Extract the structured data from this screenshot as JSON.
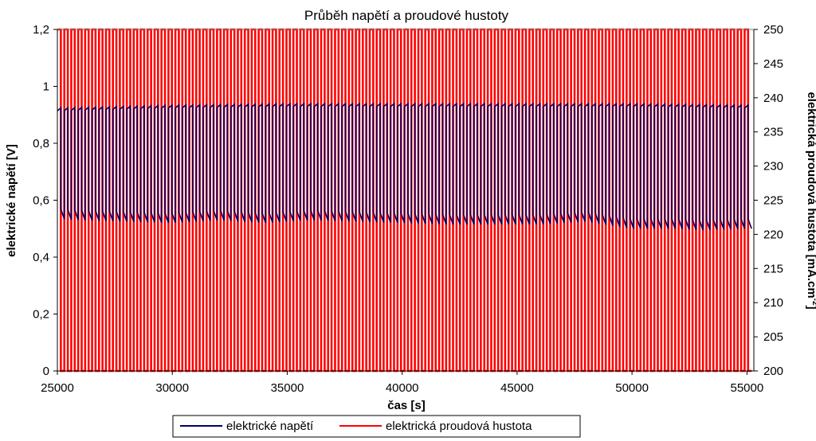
{
  "chart_data": {
    "type": "line",
    "title": "Průběh napětí a proudové hustoty",
    "xlabel": "čas [s]",
    "ylabel_left": "elektrické napětí [V]",
    "ylabel_right_main": "elektrická proudová hustota [mA.cm",
    "ylabel_right_sup": "-2",
    "ylabel_right_end": "]",
    "xlim": [
      25000,
      55300
    ],
    "ylim_left": [
      0,
      1.2
    ],
    "ylim_right": [
      200,
      250
    ],
    "x_ticks": [
      "25000",
      "30000",
      "35000",
      "40000",
      "45000",
      "50000",
      "55000"
    ],
    "x_tick_values": [
      25000,
      30000,
      35000,
      40000,
      45000,
      50000,
      55000
    ],
    "y_left_ticks": [
      "0",
      "0,2",
      "0,4",
      "0,6",
      "0,8",
      "1",
      "1,2"
    ],
    "y_left_tick_values": [
      0,
      0.2,
      0.4,
      0.6,
      0.8,
      1.0,
      1.2
    ],
    "y_right_ticks": [
      "200",
      "205",
      "210",
      "215",
      "220",
      "225",
      "230",
      "235",
      "240",
      "245",
      "250"
    ],
    "y_right_tick_values": [
      200,
      205,
      210,
      215,
      220,
      225,
      230,
      235,
      240,
      245,
      250
    ],
    "grid": false,
    "legend_position": "bottom",
    "series": [
      {
        "name": "elektrické napětí",
        "axis": "left",
        "color": "#000066",
        "x_start": 25000,
        "x_end": 55200,
        "cycle_count": 100,
        "high_envelope": [
          [
            25000,
            0.92
          ],
          [
            30000,
            0.93
          ],
          [
            35000,
            0.935
          ],
          [
            40000,
            0.935
          ],
          [
            45000,
            0.935
          ],
          [
            50000,
            0.935
          ],
          [
            55000,
            0.93
          ]
        ],
        "low_envelope": [
          [
            25000,
            0.55
          ],
          [
            26000,
            0.545
          ],
          [
            28000,
            0.54
          ],
          [
            30000,
            0.535
          ],
          [
            32000,
            0.545
          ],
          [
            34000,
            0.535
          ],
          [
            36000,
            0.545
          ],
          [
            38000,
            0.54
          ],
          [
            40000,
            0.535
          ],
          [
            42000,
            0.53
          ],
          [
            44000,
            0.53
          ],
          [
            46000,
            0.53
          ],
          [
            48000,
            0.54
          ],
          [
            50000,
            0.515
          ],
          [
            52000,
            0.515
          ],
          [
            53000,
            0.51
          ],
          [
            55000,
            0.515
          ]
        ]
      },
      {
        "name": "elektrická proudová hustota",
        "axis": "right",
        "color": "#ff0000",
        "x_start": 25000,
        "x_end": 55200,
        "cycle_count": 100,
        "min": 200,
        "max": 250
      }
    ]
  }
}
